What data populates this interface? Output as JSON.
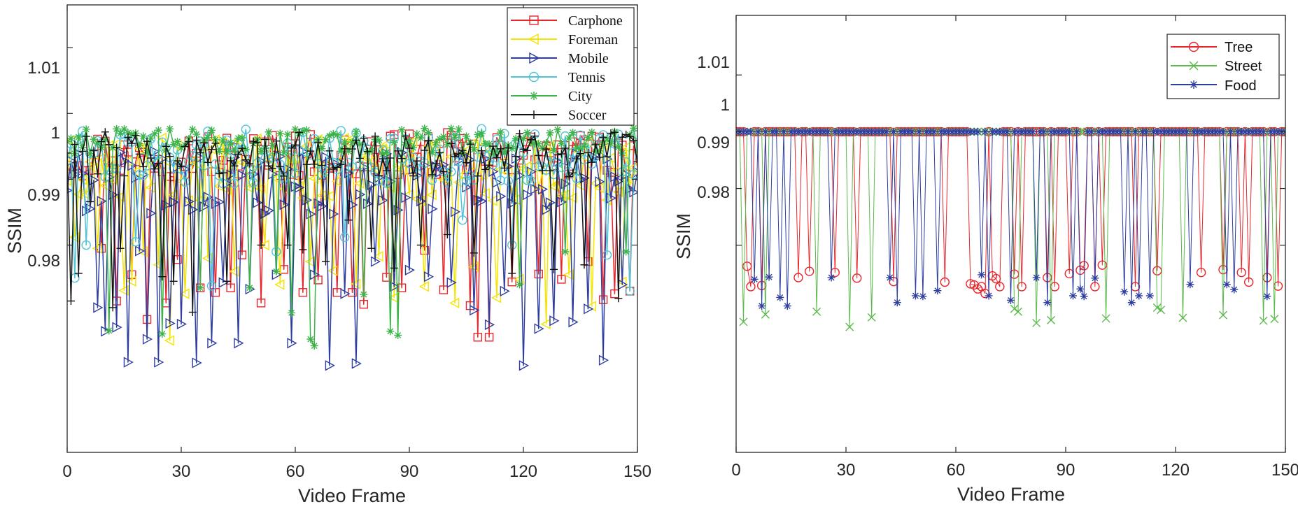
{
  "chart_data": [
    {
      "id": "left",
      "type": "line",
      "title": "",
      "xlabel": "Video Frame",
      "ylabel": "SSIM",
      "xlim": [
        0,
        150
      ],
      "ylim": [
        0.9485,
        1.0165
      ],
      "xticks": [
        0,
        30,
        60,
        90,
        120,
        150
      ],
      "yticks": [
        0.98,
        0.99,
        1,
        1.01
      ],
      "xtick_labels": [
        "0",
        "30",
        "60",
        "90",
        "120",
        "150"
      ],
      "ytick_labels": [
        "0.98",
        "0.99",
        "1",
        "1.01"
      ],
      "legend_position": "top-right",
      "legend_font": "serif",
      "frames": 150,
      "series": [
        {
          "name": "Carphone",
          "color": "#e8262c",
          "marker": "square",
          "base": 0.9937,
          "spread": 0.0034,
          "dips": [
            [
              9,
              0.9795
            ],
            [
              13,
              0.9715
            ],
            [
              17,
              0.9755
            ],
            [
              21,
              0.9687
            ],
            [
              26,
              0.9712
            ],
            [
              29,
              0.9778
            ],
            [
              35,
              0.9735
            ],
            [
              39,
              0.9728
            ],
            [
              43,
              0.9735
            ],
            [
              46,
              0.9785
            ],
            [
              51,
              0.9712
            ],
            [
              57,
              0.9763
            ],
            [
              62,
              0.9728
            ],
            [
              66,
              0.9747
            ],
            [
              71,
              0.9728
            ],
            [
              75,
              0.9728
            ],
            [
              78,
              0.971
            ],
            [
              84,
              0.9751
            ],
            [
              88,
              0.9735
            ],
            [
              94,
              0.9792
            ],
            [
              99,
              0.9732
            ],
            [
              106,
              0.9708
            ],
            [
              108,
              0.966
            ],
            [
              111,
              0.966
            ],
            [
              117,
              0.9744
            ],
            [
              124,
              0.9756
            ],
            [
              130,
              0.9748
            ],
            [
              137,
              0.9775
            ],
            [
              141,
              0.9717
            ],
            [
              144,
              0.9726
            ],
            [
              148,
              0.973
            ]
          ]
        },
        {
          "name": "Foreman",
          "color": "#f5e400",
          "marker": "triangle-left",
          "base": 0.9915,
          "spread": 0.0048,
          "dips": [
            [
              2,
              0.9812
            ],
            [
              8,
              0.9795
            ],
            [
              15,
              0.9731
            ],
            [
              17,
              0.9745
            ],
            [
              20,
              0.979
            ],
            [
              24,
              0.977
            ],
            [
              27,
              0.9655
            ],
            [
              31,
              0.9726
            ],
            [
              37,
              0.978
            ],
            [
              44,
              0.976
            ],
            [
              52,
              0.98
            ],
            [
              56,
              0.974
            ],
            [
              64,
              0.9775
            ],
            [
              70,
              0.9761
            ],
            [
              76,
              0.9741
            ],
            [
              82,
              0.9783
            ],
            [
              86,
              0.972
            ],
            [
              94,
              0.9737
            ],
            [
              102,
              0.9712
            ],
            [
              107,
              0.9767
            ],
            [
              113,
              0.972
            ],
            [
              119,
              0.9748
            ],
            [
              126,
              0.968
            ],
            [
              132,
              0.9755
            ],
            [
              138,
              0.9707
            ],
            [
              146,
              0.9744
            ]
          ]
        },
        {
          "name": "Mobile",
          "color": "#2e3ea0",
          "marker": "triangle-right",
          "base": 0.9895,
          "spread": 0.0048,
          "dips": [
            [
              8,
              0.9705
            ],
            [
              10,
              0.9669
            ],
            [
              13,
              0.9675
            ],
            [
              16,
              0.9622
            ],
            [
              19,
              0.9791
            ],
            [
              21,
              0.9657
            ],
            [
              24,
              0.9622
            ],
            [
              27,
              0.9681
            ],
            [
              30,
              0.968
            ],
            [
              34,
              0.9621
            ],
            [
              38,
              0.9651
            ],
            [
              41,
              0.9743
            ],
            [
              45,
              0.9651
            ],
            [
              48,
              0.9733
            ],
            [
              55,
              0.9755
            ],
            [
              59,
              0.9651
            ],
            [
              65,
              0.9755
            ],
            [
              69,
              0.9617
            ],
            [
              73,
              0.9726
            ],
            [
              76,
              0.962
            ],
            [
              81,
              0.9775
            ],
            [
              86,
              0.9737
            ],
            [
              90,
              0.9762
            ],
            [
              95,
              0.9752
            ],
            [
              101,
              0.9743
            ],
            [
              107,
              0.9701
            ],
            [
              111,
              0.9679
            ],
            [
              115,
              0.973
            ],
            [
              120,
              0.9617
            ],
            [
              124,
              0.9673
            ],
            [
              128,
              0.9685
            ],
            [
              133,
              0.9683
            ],
            [
              137,
              0.9703
            ],
            [
              141,
              0.9625
            ],
            [
              146,
              0.974
            ]
          ]
        },
        {
          "name": "Tennis",
          "color": "#4fc4d8",
          "marker": "circle",
          "base": 0.9935,
          "spread": 0.0042,
          "dips": [
            [
              2,
              0.975
            ],
            [
              5,
              0.98
            ],
            [
              18,
              0.9805
            ],
            [
              38,
              0.9738
            ],
            [
              55,
              0.979
            ],
            [
              73,
              0.9812
            ],
            [
              104,
              0.9838
            ],
            [
              117,
              0.98
            ],
            [
              142,
              0.9785
            ],
            [
              148,
              0.973
            ]
          ]
        },
        {
          "name": "City",
          "color": "#3cb34a",
          "marker": "asterisk",
          "base": 0.9958,
          "spread": 0.002,
          "dips": [
            [
              11,
              0.967
            ],
            [
              25,
              0.9665
            ],
            [
              35,
              0.9735
            ],
            [
              48,
              0.9735
            ],
            [
              55,
              0.976
            ],
            [
              59,
              0.9697
            ],
            [
              64,
              0.9657
            ],
            [
              65,
              0.9647
            ],
            [
              78,
              0.9725
            ],
            [
              85,
              0.9669
            ],
            [
              87,
              0.9663
            ],
            [
              119,
              0.974
            ],
            [
              131,
              0.979
            ],
            [
              147,
              0.979
            ]
          ]
        },
        {
          "name": "Soccer",
          "color": "#111111",
          "marker": "plus",
          "base": 0.9938,
          "spread": 0.0034,
          "dips": [
            [
              1,
              0.9715
            ],
            [
              3,
              0.9757
            ],
            [
              6,
              0.9866
            ],
            [
              12,
              0.9705
            ],
            [
              14,
              0.9795
            ],
            [
              25,
              0.9752
            ],
            [
              28,
              0.9745
            ],
            [
              33,
              0.9698
            ],
            [
              42,
              0.9745
            ],
            [
              51,
              0.98
            ],
            [
              58,
              0.98
            ],
            [
              62,
              0.9793
            ],
            [
              68,
              0.9775
            ],
            [
              74,
              0.9838
            ],
            [
              80,
              0.9795
            ],
            [
              86,
              0.9765
            ],
            [
              93,
              0.98
            ],
            [
              100,
              0.9816
            ],
            [
              107,
              0.9788
            ],
            [
              117,
              0.9757
            ],
            [
              128,
              0.9763
            ],
            [
              136,
              0.977
            ],
            [
              145,
              0.9719
            ]
          ]
        }
      ]
    },
    {
      "id": "right",
      "type": "line",
      "title": "",
      "xlabel": "Video Frame",
      "ylabel": "SSIM",
      "xlim": [
        0,
        150
      ],
      "ylim": [
        0.9435,
        1.0205
      ],
      "xticks": [
        0,
        30,
        60,
        90,
        120,
        150
      ],
      "yticks": [
        0.98,
        0.99,
        1,
        1.01
      ],
      "xtick_labels": [
        "0",
        "30",
        "60",
        "90",
        "120",
        "150"
      ],
      "ytick_labels": [
        "0.98",
        "0.99",
        "1",
        "1.01"
      ],
      "legend_position": "top-right",
      "legend_font": "sans",
      "frames": 150,
      "series": [
        {
          "name": "Tree",
          "color": "#e8262c",
          "marker": "circle",
          "base": 1.0,
          "spread": 0,
          "dips": [
            [
              3,
              0.9763
            ],
            [
              4,
              0.9727
            ],
            [
              7,
              0.9729
            ],
            [
              17,
              0.9743
            ],
            [
              20,
              0.9754
            ],
            [
              27,
              0.9752
            ],
            [
              33,
              0.9742
            ],
            [
              43,
              0.9736
            ],
            [
              57,
              0.9735
            ],
            [
              64,
              0.9732
            ],
            [
              65,
              0.973
            ],
            [
              66,
              0.9723
            ],
            [
              67,
              0.9727
            ],
            [
              68,
              0.9715
            ],
            [
              70,
              0.9746
            ],
            [
              71,
              0.9741
            ],
            [
              72,
              0.9727
            ],
            [
              76,
              0.9749
            ],
            [
              78,
              0.9727
            ],
            [
              85,
              0.9743
            ],
            [
              87,
              0.9727
            ],
            [
              91,
              0.975
            ],
            [
              94,
              0.9756
            ],
            [
              95,
              0.9764
            ],
            [
              98,
              0.9727
            ],
            [
              100,
              0.9765
            ],
            [
              109,
              0.9727
            ],
            [
              115,
              0.9755
            ],
            [
              127,
              0.9752
            ],
            [
              133,
              0.9757
            ],
            [
              138,
              0.9752
            ],
            [
              140,
              0.9735
            ],
            [
              145,
              0.9743
            ],
            [
              148,
              0.9728
            ]
          ]
        },
        {
          "name": "Street",
          "color": "#5aba4a",
          "marker": "x",
          "base": 1.0,
          "spread": 0,
          "dips": [
            [
              2,
              0.9665
            ],
            [
              8,
              0.9678
            ],
            [
              22,
              0.9683
            ],
            [
              31,
              0.9656
            ],
            [
              37,
              0.9673
            ],
            [
              76,
              0.9688
            ],
            [
              77,
              0.9683
            ],
            [
              82,
              0.9663
            ],
            [
              86,
              0.9668
            ],
            [
              101,
              0.9671
            ],
            [
              115,
              0.969
            ],
            [
              116,
              0.9686
            ],
            [
              122,
              0.9672
            ],
            [
              133,
              0.9677
            ],
            [
              144,
              0.9667
            ],
            [
              147,
              0.967
            ]
          ]
        },
        {
          "name": "Food",
          "color": "#2e3ea0",
          "marker": "asterisk",
          "base": 1.0,
          "spread": 0,
          "dips": [
            [
              5,
              0.974
            ],
            [
              7,
              0.9693
            ],
            [
              9,
              0.9744
            ],
            [
              12,
              0.9708
            ],
            [
              14,
              0.9693
            ],
            [
              26,
              0.9743
            ],
            [
              42,
              0.9743
            ],
            [
              44,
              0.9699
            ],
            [
              49,
              0.9711
            ],
            [
              51,
              0.971
            ],
            [
              55,
              0.972
            ],
            [
              67,
              0.9748
            ],
            [
              69,
              0.9711
            ],
            [
              75,
              0.9703
            ],
            [
              82,
              0.9743
            ],
            [
              85,
              0.9699
            ],
            [
              92,
              0.9711
            ],
            [
              94,
              0.9723
            ],
            [
              95,
              0.971
            ],
            [
              98,
              0.9742
            ],
            [
              106,
              0.9718
            ],
            [
              108,
              0.9699
            ],
            [
              110,
              0.9711
            ],
            [
              113,
              0.9711
            ],
            [
              124,
              0.9731
            ],
            [
              134,
              0.9731
            ],
            [
              136,
              0.9722
            ],
            [
              145,
              0.971
            ]
          ]
        }
      ]
    }
  ]
}
